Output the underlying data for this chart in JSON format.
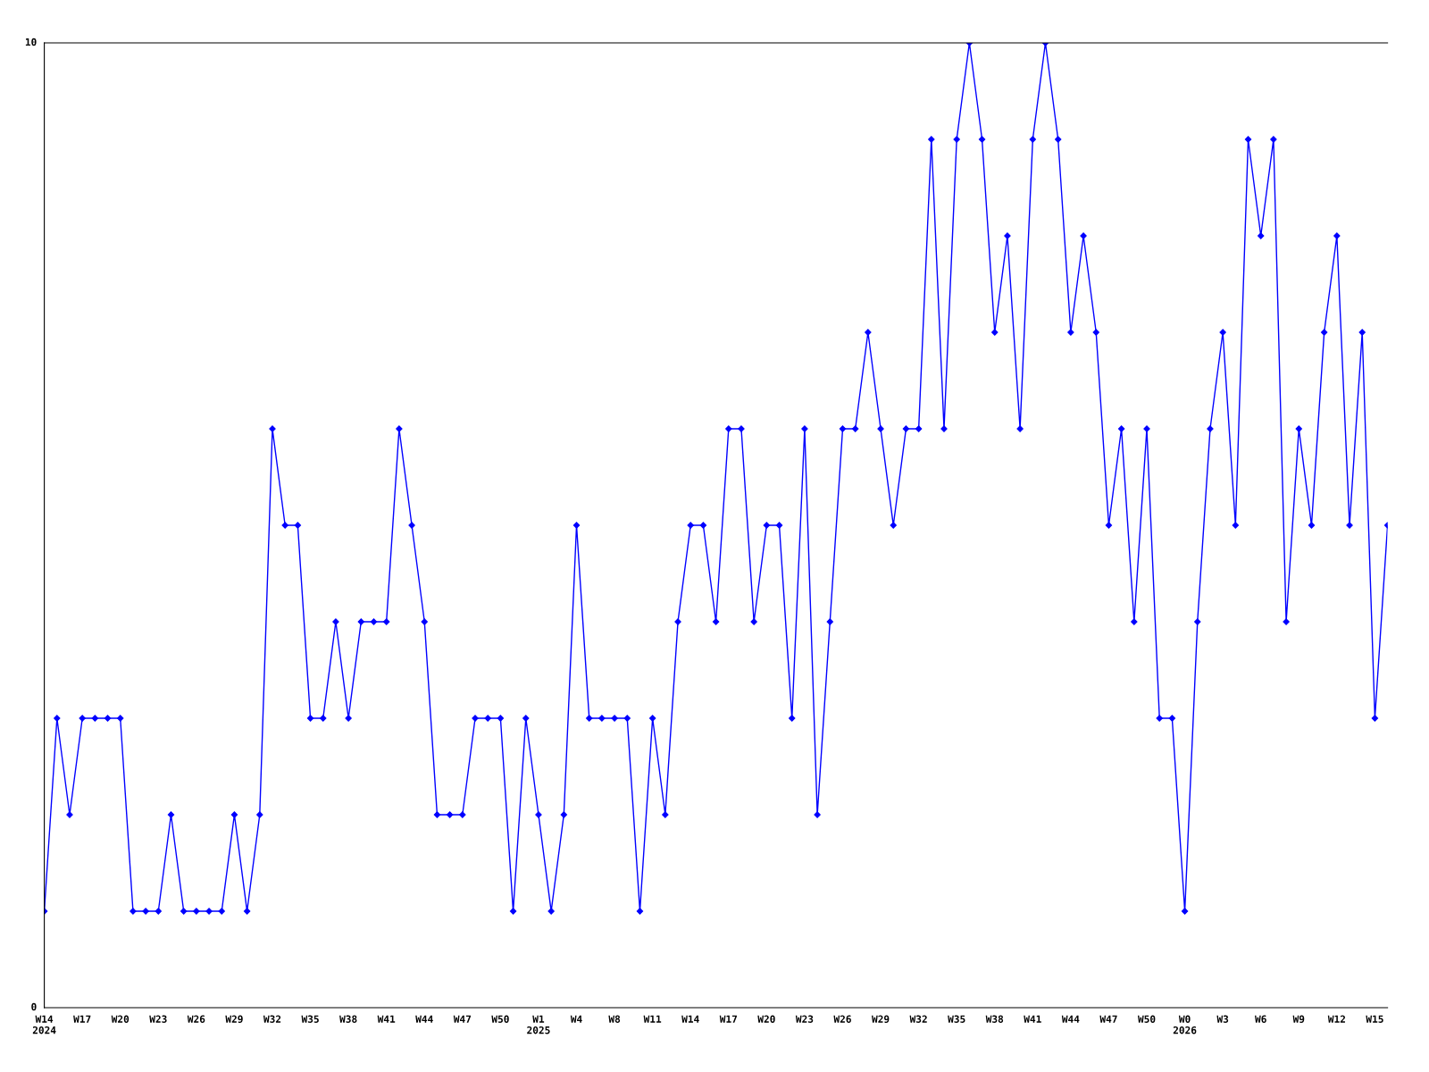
{
  "chart_data": {
    "type": "line",
    "categories": [
      "W14\n2024",
      null,
      null,
      "W17",
      null,
      null,
      "W20",
      null,
      null,
      "W23",
      null,
      null,
      "W26",
      null,
      null,
      "W29",
      null,
      null,
      "W32",
      null,
      null,
      "W35",
      null,
      null,
      "W38",
      null,
      null,
      "W41",
      null,
      null,
      "W44",
      null,
      null,
      "W47",
      null,
      null,
      "W50",
      null,
      null,
      "W1\n2025",
      null,
      null,
      "W4",
      null,
      null,
      "W8",
      null,
      null,
      "W11",
      null,
      null,
      "W14",
      null,
      null,
      "W17",
      null,
      null,
      "W20",
      null,
      null,
      "W23",
      null,
      null,
      "W26",
      null,
      null,
      "W29",
      null,
      null,
      "W32",
      null,
      null,
      "W35",
      null,
      null,
      "W38",
      null,
      null,
      "W41",
      null,
      null,
      "W44",
      null,
      null,
      "W47",
      null,
      null,
      "W50",
      null,
      null,
      "W0\n2026",
      null,
      null,
      "W3",
      null,
      null,
      "W6",
      null,
      null,
      "W9",
      null,
      null,
      "W12",
      null,
      null,
      "W15",
      null
    ],
    "series": [
      {
        "color": "#0000ff",
        "values": [
          1,
          3,
          2,
          3,
          3,
          3,
          3,
          1,
          1,
          1,
          2,
          1,
          1,
          1,
          1,
          2,
          1,
          2,
          6,
          5,
          5,
          3,
          3,
          4,
          3,
          4,
          4,
          4,
          6,
          5,
          4,
          2,
          2,
          2,
          3,
          3,
          3,
          1,
          3,
          2,
          1,
          2,
          5,
          3,
          3,
          3,
          3,
          1,
          3,
          2,
          4,
          5,
          5,
          4,
          6,
          6,
          4,
          5,
          5,
          3,
          6,
          2,
          4,
          6,
          6,
          7,
          6,
          5,
          6,
          6,
          9,
          6,
          9,
          10,
          9,
          7,
          8,
          6,
          9,
          10,
          9,
          7,
          8,
          7,
          5,
          6,
          4,
          6,
          3,
          3,
          1,
          4,
          6,
          7,
          5,
          9,
          8,
          9,
          4,
          6,
          5,
          7,
          8,
          5,
          7,
          3,
          5
        ]
      }
    ],
    "ylim": [
      0,
      10
    ],
    "yticks": [
      0,
      10
    ],
    "grid": false,
    "legend": false,
    "marker": "diamond",
    "line_style": "solid"
  }
}
